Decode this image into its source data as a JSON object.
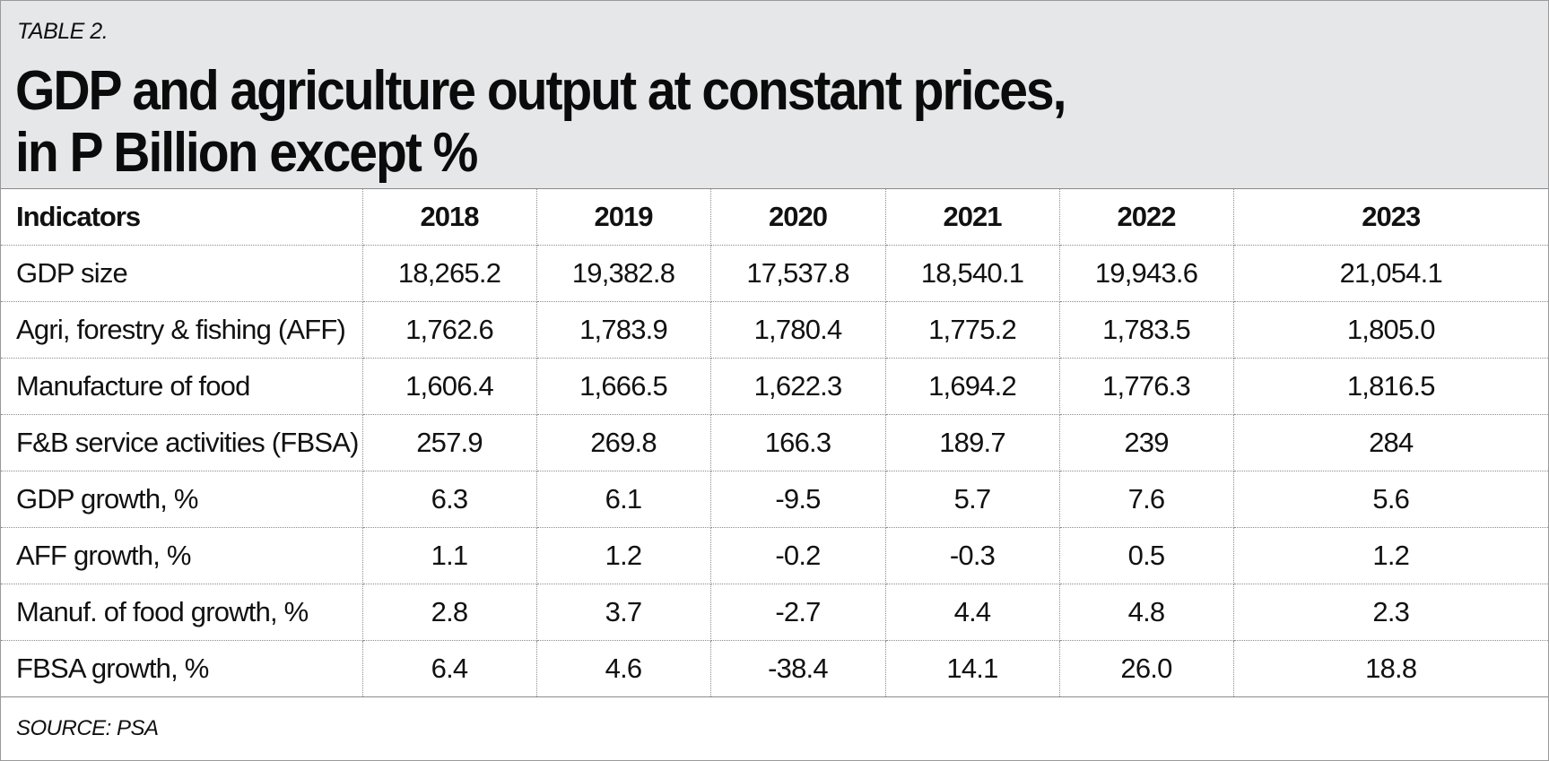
{
  "header": {
    "table_label": "TABLE 2.",
    "title_line1": "GDP and agriculture output at constant prices,",
    "title_line2": "in P Billion except %"
  },
  "table": {
    "columns": [
      "Indicators",
      "2018",
      "2019",
      "2020",
      "2021",
      "2022",
      "2023"
    ],
    "rows": [
      [
        "GDP size",
        "18,265.2",
        "19,382.8",
        "17,537.8",
        "18,540.1",
        "19,943.6",
        "21,054.1"
      ],
      [
        "Agri, forestry & fishing (AFF)",
        "1,762.6",
        "1,783.9",
        "1,780.4",
        "1,775.2",
        "1,783.5",
        "1,805.0"
      ],
      [
        "Manufacture of food",
        "1,606.4",
        "1,666.5",
        "1,622.3",
        "1,694.2",
        "1,776.3",
        "1,816.5"
      ],
      [
        "F&B service activities (FBSA)",
        "257.9",
        "269.8",
        "166.3",
        "189.7",
        "239",
        "284"
      ],
      [
        "GDP growth, %",
        "6.3",
        "6.1",
        "-9.5",
        "5.7",
        "7.6",
        "5.6"
      ],
      [
        "AFF growth, %",
        "1.1",
        "1.2",
        "-0.2",
        "-0.3",
        "0.5",
        "1.2"
      ],
      [
        "Manuf. of food growth, %",
        "2.8",
        "3.7",
        "-2.7",
        "4.4",
        "4.8",
        "2.3"
      ],
      [
        "FBSA growth, %",
        "6.4",
        "4.6",
        "-38.4",
        "14.1",
        "26.0",
        "18.8"
      ]
    ]
  },
  "footer": {
    "source": "SOURCE: PSA"
  },
  "colors": {
    "header_background": "#e6e7e8",
    "text": "#111111",
    "grid_lines": "#8c8c8c"
  }
}
